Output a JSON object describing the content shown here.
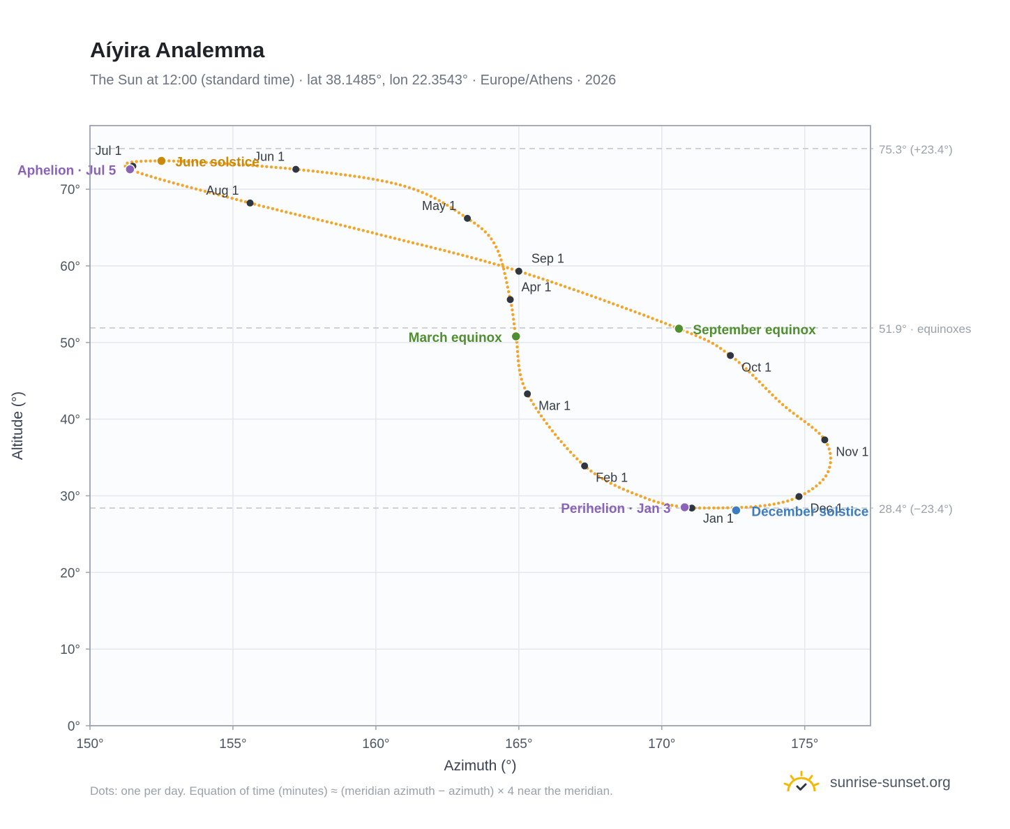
{
  "title": "Aíyira Analemma",
  "subtitle": "The Sun at 12:00 (standard time) · lat 38.1485°, lon 22.3543° · Europe/Athens · 2026",
  "footnote": "Dots: one per day. Equation of time (minutes) ≈ (meridian azimuth − azimuth) × 4 near the meridian.",
  "brand": {
    "name": "sunrise-sunset.org",
    "icon": "sun-icon",
    "color": "#f5b800"
  },
  "colors": {
    "curve": "#f2a52a",
    "month": "#2f3640",
    "june": "#c98a0c",
    "equinox": "#4f8f2f",
    "december": "#3d7cc0",
    "apsis": "#8a63b8",
    "grid": "#e3e8ee",
    "plot_bg": "#fbfcfe",
    "frame": "#9aa3b0",
    "ref": "#c4c8d0"
  },
  "chart_data": {
    "type": "scatter",
    "xlabel": "Azimuth (°)",
    "ylabel": "Altitude (°)",
    "xlim": [
      150,
      177.3
    ],
    "ylim": [
      0,
      78.3
    ],
    "x_ticks": [
      150,
      155,
      160,
      165,
      170,
      175
    ],
    "y_ticks": [
      0,
      10,
      20,
      30,
      40,
      50,
      60,
      70
    ],
    "x_tick_labels": [
      "150°",
      "155°",
      "160°",
      "165°",
      "170°",
      "175°"
    ],
    "y_tick_labels": [
      "0°",
      "10°",
      "20°",
      "30°",
      "40°",
      "50°",
      "60°",
      "70°"
    ],
    "grid": true,
    "path_anchors": [
      [
        171.0,
        28.4
      ],
      [
        173.3,
        28.6
      ],
      [
        174.8,
        29.9
      ],
      [
        175.8,
        33.0
      ],
      [
        175.7,
        37.3
      ],
      [
        174.2,
        42.0
      ],
      [
        172.4,
        48.3
      ],
      [
        170.6,
        51.8
      ],
      [
        165.0,
        59.3
      ],
      [
        160.0,
        64.2
      ],
      [
        155.6,
        68.2
      ],
      [
        151.4,
        72.6
      ],
      [
        152.5,
        73.7
      ],
      [
        157.2,
        72.6
      ],
      [
        161.0,
        70.4
      ],
      [
        163.2,
        66.2
      ],
      [
        164.2,
        62.5
      ],
      [
        164.7,
        55.6
      ],
      [
        164.9,
        50.8
      ],
      [
        165.3,
        43.3
      ],
      [
        167.3,
        33.9
      ],
      [
        169.5,
        29.6
      ],
      [
        171.0,
        28.4
      ]
    ],
    "months": [
      {
        "label": "Jan 1",
        "az": 171.05,
        "alt": 28.4
      },
      {
        "label": "Feb 1",
        "az": 167.3,
        "alt": 33.9
      },
      {
        "label": "Mar 1",
        "az": 165.3,
        "alt": 43.3
      },
      {
        "label": "Apr 1",
        "az": 164.7,
        "alt": 55.6
      },
      {
        "label": "May 1",
        "az": 163.2,
        "alt": 66.2
      },
      {
        "label": "Jun 1",
        "az": 157.2,
        "alt": 72.6
      },
      {
        "label": "Jul 1",
        "az": 151.5,
        "alt": 73.0
      },
      {
        "label": "Aug 1",
        "az": 155.6,
        "alt": 68.2
      },
      {
        "label": "Sep 1",
        "az": 165.0,
        "alt": 59.3
      },
      {
        "label": "Oct 1",
        "az": 172.4,
        "alt": 48.3
      },
      {
        "label": "Nov 1",
        "az": 175.7,
        "alt": 37.3
      },
      {
        "label": "Dec 1",
        "az": 174.8,
        "alt": 29.9
      }
    ],
    "events": [
      {
        "label": "June solstice",
        "az": 152.5,
        "alt": 73.7,
        "kind": "june"
      },
      {
        "label": "Aphelion · Jul 5",
        "az": 151.4,
        "alt": 72.6,
        "kind": "apsis"
      },
      {
        "label": "March equinox",
        "az": 164.9,
        "alt": 50.8,
        "kind": "equinox"
      },
      {
        "label": "September equinox",
        "az": 170.6,
        "alt": 51.8,
        "kind": "equinox"
      },
      {
        "label": "Perihelion · Jan 3",
        "az": 170.8,
        "alt": 28.5,
        "kind": "apsis"
      },
      {
        "label": "December solstice",
        "az": 172.6,
        "alt": 28.1,
        "kind": "december"
      }
    ],
    "reference_lines": [
      {
        "alt": 75.3,
        "label": "75.3° (+23.4°)"
      },
      {
        "alt": 51.9,
        "label": "51.9° · equinoxes"
      },
      {
        "alt": 28.4,
        "label": "28.4° (−23.4°)"
      }
    ]
  }
}
